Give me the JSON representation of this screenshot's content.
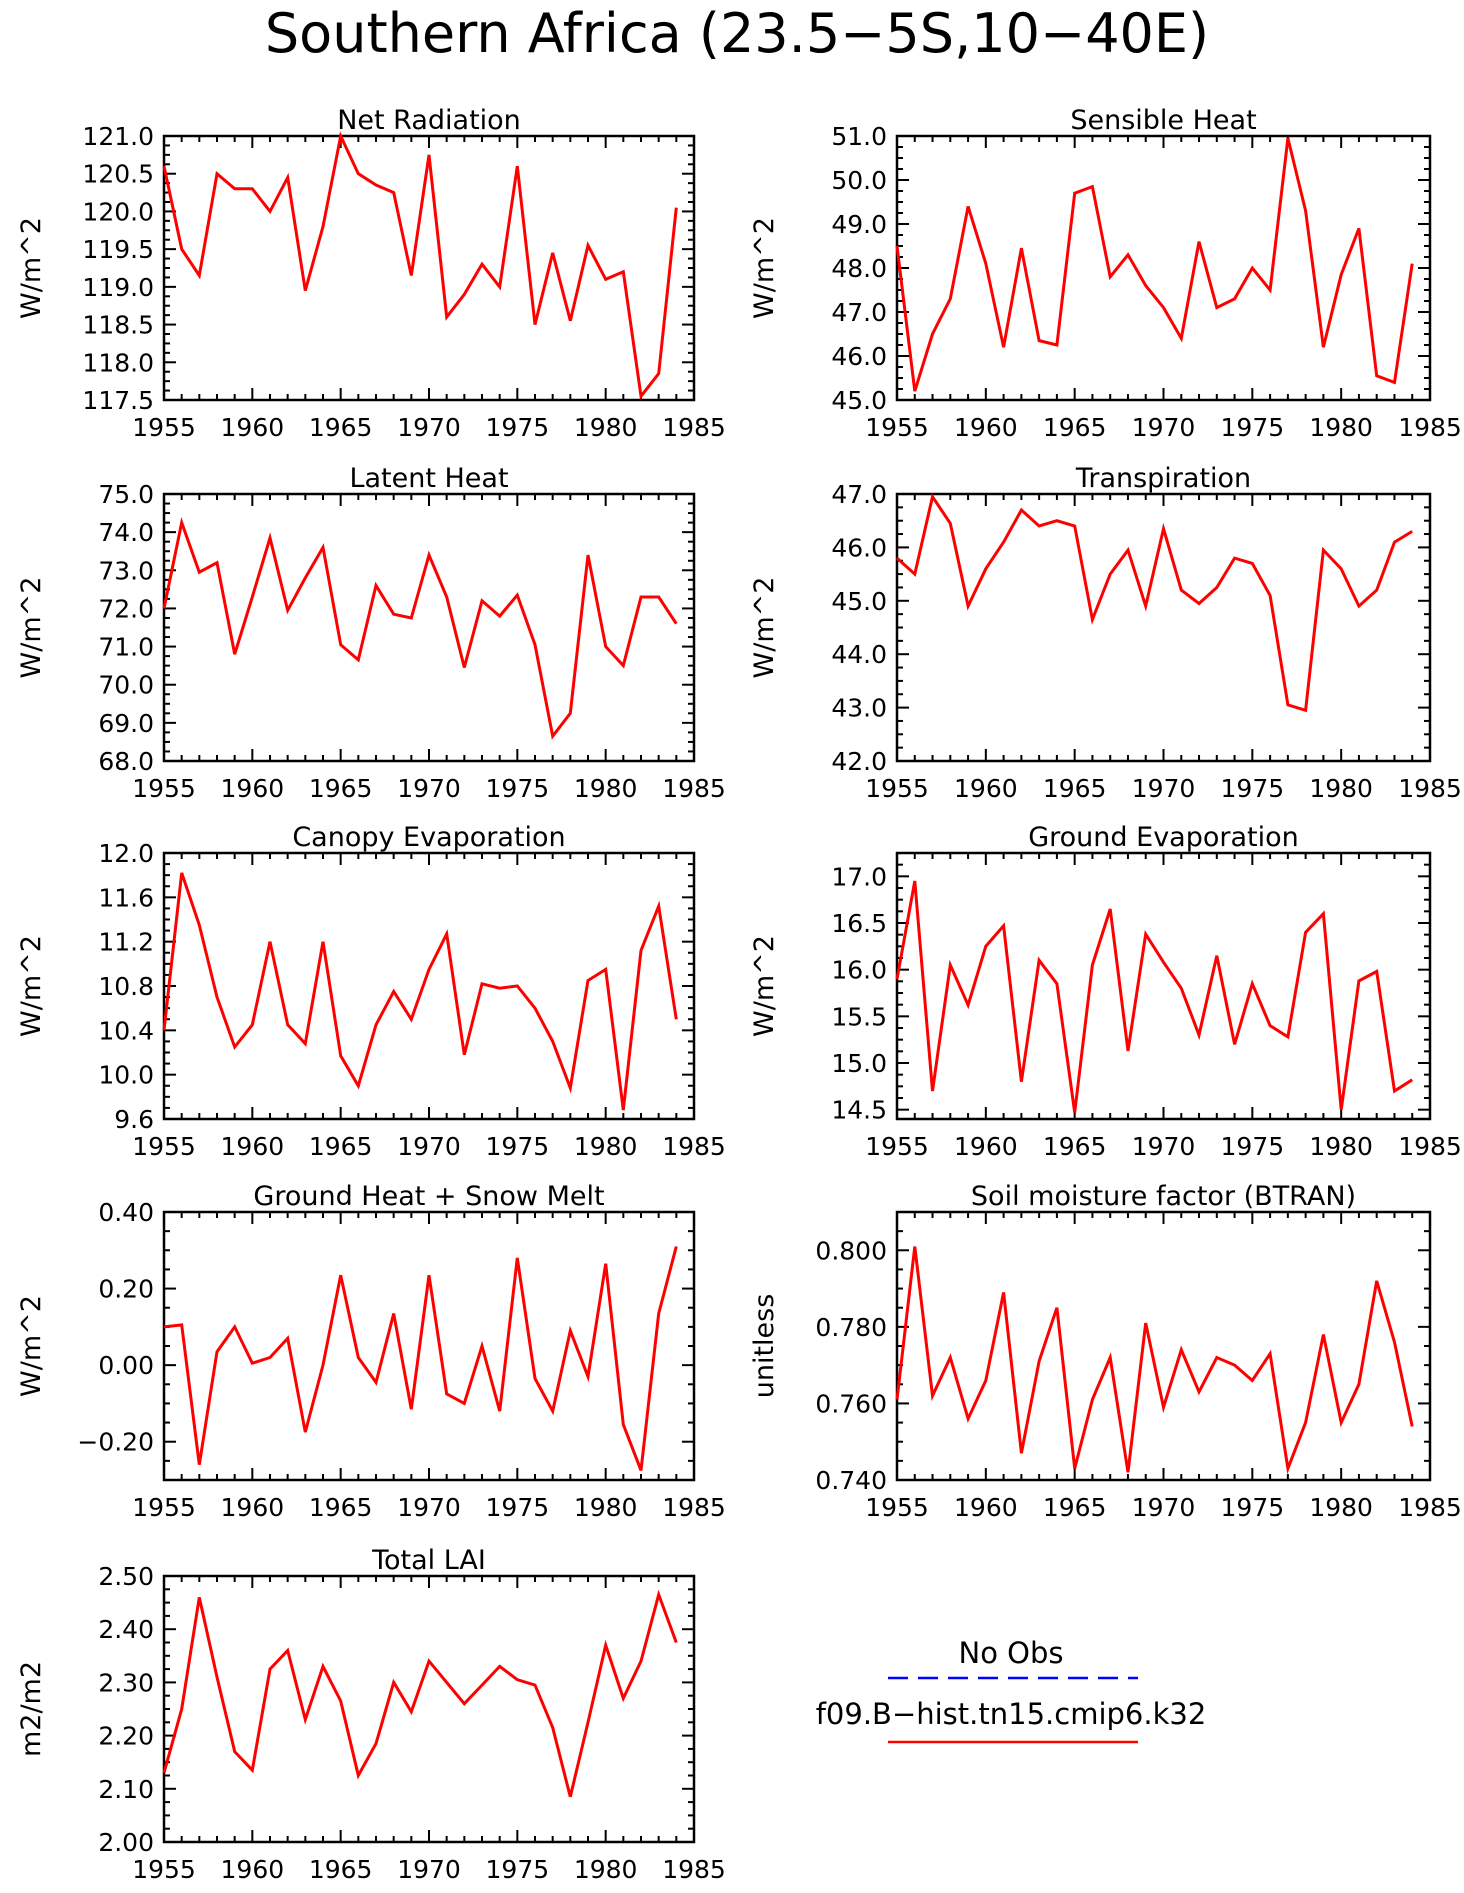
{
  "title": "Southern Africa (23.5−5S,10−40E)",
  "legend": {
    "entries": [
      {
        "label": "No Obs",
        "color": "#0000ff",
        "style": "dashed"
      },
      {
        "label": "f09.B−hist.tn15.cmip6.k32",
        "color": "#ff0000",
        "style": "solid"
      }
    ]
  },
  "chart_data": [
    {
      "type": "line",
      "title": "Net Radiation",
      "ylabel": "W/m^2",
      "xlim": [
        1955,
        1985
      ],
      "x_ticks": [
        1955,
        1960,
        1965,
        1970,
        1975,
        1980,
        1985
      ],
      "ylim": [
        117.5,
        121.0
      ],
      "y_ticks": [
        "117.5",
        "118.0",
        "118.5",
        "119.0",
        "119.5",
        "120.0",
        "120.5",
        "121.0"
      ],
      "y_tick_values": [
        117.5,
        118.0,
        118.5,
        119.0,
        119.5,
        120.0,
        120.5,
        121.0
      ],
      "x": [
        1955,
        1956,
        1957,
        1958,
        1959,
        1960,
        1961,
        1962,
        1963,
        1964,
        1965,
        1966,
        1967,
        1968,
        1969,
        1970,
        1971,
        1972,
        1973,
        1974,
        1975,
        1976,
        1977,
        1978,
        1979,
        1980,
        1981,
        1982,
        1983,
        1984
      ],
      "values": [
        120.6,
        119.5,
        119.15,
        120.5,
        120.3,
        120.3,
        120.0,
        120.45,
        118.95,
        119.8,
        121.0,
        120.5,
        120.35,
        120.25,
        119.15,
        120.75,
        118.6,
        118.9,
        119.3,
        119.0,
        120.6,
        118.5,
        119.45,
        118.55,
        119.55,
        119.1,
        119.2,
        117.55,
        117.85,
        120.05
      ],
      "color": "#ff0000"
    },
    {
      "type": "line",
      "title": "Sensible Heat",
      "ylabel": "W/m^2",
      "xlim": [
        1955,
        1985
      ],
      "x_ticks": [
        1955,
        1960,
        1965,
        1970,
        1975,
        1980,
        1985
      ],
      "ylim": [
        45.0,
        51.0
      ],
      "y_ticks": [
        "45.0",
        "46.0",
        "47.0",
        "48.0",
        "49.0",
        "50.0",
        "51.0"
      ],
      "y_tick_values": [
        45.0,
        46.0,
        47.0,
        48.0,
        49.0,
        50.0,
        51.0
      ],
      "x": [
        1955,
        1956,
        1957,
        1958,
        1959,
        1960,
        1961,
        1962,
        1963,
        1964,
        1965,
        1966,
        1967,
        1968,
        1969,
        1970,
        1971,
        1972,
        1973,
        1974,
        1975,
        1976,
        1977,
        1978,
        1979,
        1980,
        1981,
        1982,
        1983,
        1984
      ],
      "values": [
        48.5,
        45.2,
        46.5,
        47.3,
        49.4,
        48.1,
        46.2,
        48.45,
        46.35,
        46.25,
        49.7,
        49.85,
        47.8,
        48.3,
        47.6,
        47.1,
        46.4,
        48.6,
        47.1,
        47.3,
        48.0,
        47.5,
        50.95,
        49.3,
        46.2,
        47.85,
        48.9,
        45.55,
        45.4,
        48.1
      ],
      "color": "#ff0000"
    },
    {
      "type": "line",
      "title": "Latent Heat",
      "ylabel": "W/m^2",
      "xlim": [
        1955,
        1985
      ],
      "x_ticks": [
        1955,
        1960,
        1965,
        1970,
        1975,
        1980,
        1985
      ],
      "ylim": [
        68.0,
        75.0
      ],
      "y_ticks": [
        "68.0",
        "69.0",
        "70.0",
        "71.0",
        "72.0",
        "73.0",
        "74.0",
        "75.0"
      ],
      "y_tick_values": [
        68.0,
        69.0,
        70.0,
        71.0,
        72.0,
        73.0,
        74.0,
        75.0
      ],
      "x": [
        1955,
        1956,
        1957,
        1958,
        1959,
        1960,
        1961,
        1962,
        1963,
        1964,
        1965,
        1966,
        1967,
        1968,
        1969,
        1970,
        1971,
        1972,
        1973,
        1974,
        1975,
        1976,
        1977,
        1978,
        1979,
        1980,
        1981,
        1982,
        1983,
        1984
      ],
      "values": [
        72.0,
        74.25,
        72.95,
        73.2,
        70.8,
        72.3,
        73.85,
        71.95,
        72.8,
        73.6,
        71.05,
        70.65,
        72.6,
        71.85,
        71.75,
        73.4,
        72.3,
        70.45,
        72.2,
        71.8,
        72.35,
        71.05,
        68.65,
        69.25,
        73.4,
        71.0,
        70.5,
        72.3,
        72.3,
        71.6
      ],
      "color": "#ff0000"
    },
    {
      "type": "line",
      "title": "Transpiration",
      "ylabel": "W/m^2",
      "xlim": [
        1955,
        1985
      ],
      "x_ticks": [
        1955,
        1960,
        1965,
        1970,
        1975,
        1980,
        1985
      ],
      "ylim": [
        42.0,
        47.0
      ],
      "y_ticks": [
        "42.0",
        "43.0",
        "44.0",
        "45.0",
        "46.0",
        "47.0"
      ],
      "y_tick_values": [
        42.0,
        43.0,
        44.0,
        45.0,
        46.0,
        47.0
      ],
      "x": [
        1955,
        1956,
        1957,
        1958,
        1959,
        1960,
        1961,
        1962,
        1963,
        1964,
        1965,
        1966,
        1967,
        1968,
        1969,
        1970,
        1971,
        1972,
        1973,
        1974,
        1975,
        1976,
        1977,
        1978,
        1979,
        1980,
        1981,
        1982,
        1983,
        1984
      ],
      "values": [
        45.8,
        45.5,
        46.95,
        46.45,
        44.9,
        45.6,
        46.1,
        46.7,
        46.4,
        46.5,
        46.4,
        44.65,
        45.5,
        45.95,
        44.9,
        46.35,
        45.2,
        44.95,
        45.25,
        45.8,
        45.7,
        45.1,
        43.05,
        42.95,
        45.95,
        45.6,
        44.9,
        45.2,
        46.1,
        46.3
      ],
      "color": "#ff0000"
    },
    {
      "type": "line",
      "title": "Canopy Evaporation",
      "ylabel": "W/m^2",
      "xlim": [
        1955,
        1985
      ],
      "x_ticks": [
        1955,
        1960,
        1965,
        1970,
        1975,
        1980,
        1985
      ],
      "ylim": [
        9.6,
        12.0
      ],
      "y_ticks": [
        "9.6",
        "10.0",
        "10.4",
        "10.8",
        "11.2",
        "11.6",
        "12.0"
      ],
      "y_tick_values": [
        9.6,
        10.0,
        10.4,
        10.8,
        11.2,
        11.6,
        12.0
      ],
      "x": [
        1955,
        1956,
        1957,
        1958,
        1959,
        1960,
        1961,
        1962,
        1963,
        1964,
        1965,
        1966,
        1967,
        1968,
        1969,
        1970,
        1971,
        1972,
        1973,
        1974,
        1975,
        1976,
        1977,
        1978,
        1979,
        1980,
        1981,
        1982,
        1983,
        1984
      ],
      "values": [
        10.4,
        11.82,
        11.35,
        10.7,
        10.25,
        10.45,
        11.2,
        10.45,
        10.28,
        11.2,
        10.17,
        9.9,
        10.45,
        10.75,
        10.5,
        10.95,
        11.27,
        10.18,
        10.82,
        10.78,
        10.8,
        10.6,
        10.3,
        9.88,
        10.85,
        10.95,
        9.68,
        11.12,
        11.52,
        10.5
      ],
      "color": "#ff0000"
    },
    {
      "type": "line",
      "title": "Ground Evaporation",
      "ylabel": "W/m^2",
      "xlim": [
        1955,
        1985
      ],
      "x_ticks": [
        1955,
        1960,
        1965,
        1970,
        1975,
        1980,
        1985
      ],
      "ylim": [
        14.4,
        17.25
      ],
      "y_ticks": [
        "14.5",
        "15.0",
        "15.5",
        "16.0",
        "16.5",
        "17.0"
      ],
      "y_tick_values": [
        14.5,
        15.0,
        15.5,
        16.0,
        16.5,
        17.0
      ],
      "x": [
        1955,
        1956,
        1957,
        1958,
        1959,
        1960,
        1961,
        1962,
        1963,
        1964,
        1965,
        1966,
        1967,
        1968,
        1969,
        1970,
        1971,
        1972,
        1973,
        1974,
        1975,
        1976,
        1977,
        1978,
        1979,
        1980,
        1981,
        1982,
        1983,
        1984
      ],
      "values": [
        15.9,
        16.95,
        14.7,
        16.05,
        15.62,
        16.25,
        16.47,
        14.8,
        16.1,
        15.85,
        14.47,
        16.05,
        16.65,
        15.13,
        16.38,
        16.08,
        15.8,
        15.3,
        16.15,
        15.2,
        15.85,
        15.4,
        15.28,
        16.4,
        16.6,
        14.5,
        15.88,
        15.98,
        14.7,
        14.82
      ],
      "color": "#ff0000"
    },
    {
      "type": "line",
      "title": "Ground Heat + Snow Melt",
      "ylabel": "W/m^2",
      "xlim": [
        1955,
        1985
      ],
      "x_ticks": [
        1955,
        1960,
        1965,
        1970,
        1975,
        1980,
        1985
      ],
      "ylim": [
        -0.3,
        0.4
      ],
      "y_ticks": [
        "−0.20",
        "0.00",
        "0.20",
        "0.40"
      ],
      "y_tick_values": [
        -0.2,
        0.0,
        0.2,
        0.4
      ],
      "x": [
        1955,
        1956,
        1957,
        1958,
        1959,
        1960,
        1961,
        1962,
        1963,
        1964,
        1965,
        1966,
        1967,
        1968,
        1969,
        1970,
        1971,
        1972,
        1973,
        1974,
        1975,
        1976,
        1977,
        1978,
        1979,
        1980,
        1981,
        1982,
        1983,
        1984
      ],
      "values": [
        0.1,
        0.105,
        -0.26,
        0.035,
        0.1,
        0.005,
        0.02,
        0.07,
        -0.175,
        0.0,
        0.235,
        0.02,
        -0.045,
        0.135,
        -0.115,
        0.235,
        -0.075,
        -0.1,
        0.05,
        -0.12,
        0.28,
        -0.035,
        -0.12,
        0.09,
        -0.03,
        0.265,
        -0.155,
        -0.275,
        0.135,
        0.31
      ],
      "color": "#ff0000"
    },
    {
      "type": "line",
      "title": "Soil moisture factor (BTRAN)",
      "ylabel": "unitless",
      "xlim": [
        1955,
        1985
      ],
      "x_ticks": [
        1955,
        1960,
        1965,
        1970,
        1975,
        1980,
        1985
      ],
      "ylim": [
        0.74,
        0.81
      ],
      "y_ticks": [
        "0.740",
        "0.760",
        "0.780",
        "0.800"
      ],
      "y_tick_values": [
        0.74,
        0.76,
        0.78,
        0.8
      ],
      "x": [
        1955,
        1956,
        1957,
        1958,
        1959,
        1960,
        1961,
        1962,
        1963,
        1964,
        1965,
        1966,
        1967,
        1968,
        1969,
        1970,
        1971,
        1972,
        1973,
        1974,
        1975,
        1976,
        1977,
        1978,
        1979,
        1980,
        1981,
        1982,
        1983,
        1984
      ],
      "values": [
        0.761,
        0.801,
        0.762,
        0.772,
        0.756,
        0.766,
        0.789,
        0.747,
        0.771,
        0.785,
        0.743,
        0.761,
        0.772,
        0.742,
        0.781,
        0.759,
        0.774,
        0.763,
        0.772,
        0.77,
        0.766,
        0.773,
        0.743,
        0.755,
        0.778,
        0.755,
        0.765,
        0.792,
        0.776,
        0.754
      ],
      "color": "#ff0000"
    },
    {
      "type": "line",
      "title": "Total LAI",
      "ylabel": "m2/m2",
      "xlim": [
        1955,
        1985
      ],
      "x_ticks": [
        1955,
        1960,
        1965,
        1970,
        1975,
        1980,
        1985
      ],
      "ylim": [
        2.0,
        2.5
      ],
      "y_ticks": [
        "2.00",
        "2.10",
        "2.20",
        "2.30",
        "2.40",
        "2.50"
      ],
      "y_tick_values": [
        2.0,
        2.1,
        2.2,
        2.3,
        2.4,
        2.5
      ],
      "x": [
        1955,
        1956,
        1957,
        1958,
        1959,
        1960,
        1961,
        1962,
        1963,
        1964,
        1965,
        1966,
        1967,
        1968,
        1969,
        1970,
        1971,
        1972,
        1973,
        1974,
        1975,
        1976,
        1977,
        1978,
        1979,
        1980,
        1981,
        1982,
        1983,
        1984
      ],
      "values": [
        2.13,
        2.25,
        2.46,
        2.31,
        2.17,
        2.135,
        2.325,
        2.36,
        2.23,
        2.33,
        2.265,
        2.125,
        2.185,
        2.3,
        2.245,
        2.34,
        2.3,
        2.26,
        2.295,
        2.33,
        2.305,
        2.295,
        2.215,
        2.085,
        2.225,
        2.37,
        2.27,
        2.34,
        2.465,
        2.375
      ],
      "color": "#ff0000"
    }
  ]
}
